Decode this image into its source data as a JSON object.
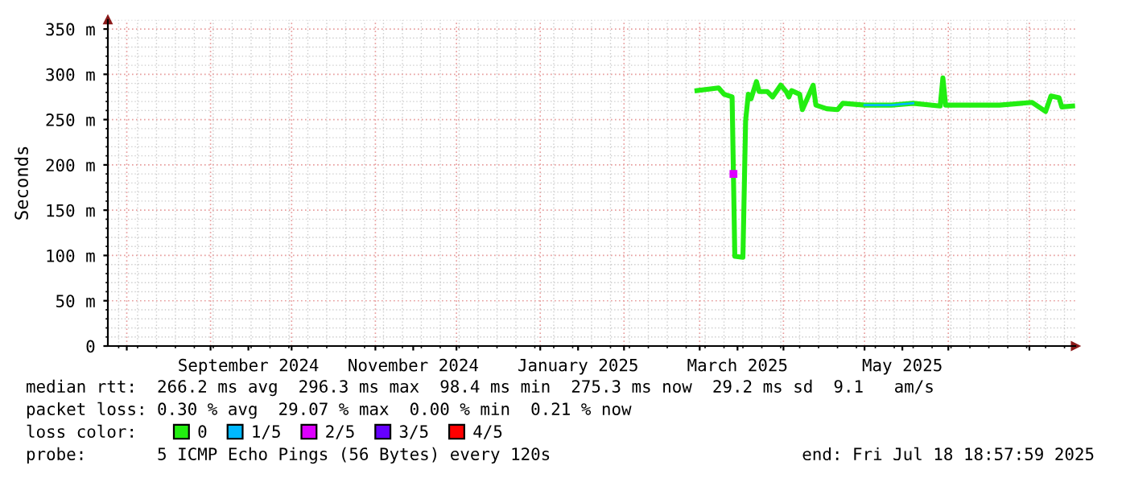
{
  "chart_data": {
    "type": "line",
    "ylabel": "Seconds",
    "xlim": [
      "2024-07-25",
      "2025-07-18"
    ],
    "ylim": [
      0,
      360
    ],
    "xticks": [
      {
        "value": "2024-08-01",
        "label": null
      },
      {
        "value": "2024-09-01",
        "label": null
      },
      {
        "value": "2024-10-01",
        "label": null
      },
      {
        "value": "2024-11-01",
        "label": null
      },
      {
        "value": "2024-12-01",
        "label": null
      },
      {
        "value": "2025-01-01",
        "label": null
      },
      {
        "value": "2025-02-01",
        "label": null
      },
      {
        "value": "2025-03-01",
        "label": null
      },
      {
        "value": "2025-04-01",
        "label": null
      },
      {
        "value": "2025-05-01",
        "label": null
      },
      {
        "value": "2025-06-01",
        "label": null
      },
      {
        "value": "2025-07-01",
        "label": null
      },
      {
        "value": "2024-09-15",
        "label": "September 2024"
      },
      {
        "value": "2024-11-15",
        "label": "November 2024"
      },
      {
        "value": "2025-01-15",
        "label": "January 2025"
      },
      {
        "value": "2025-03-15",
        "label": "March 2025"
      },
      {
        "value": "2025-05-15",
        "label": "May 2025"
      }
    ],
    "yticks": [
      0,
      {
        "value": 50,
        "label": "50 m"
      },
      {
        "value": 100,
        "label": "100 m"
      },
      {
        "value": 150,
        "label": "150 m"
      },
      {
        "value": 200,
        "label": "200 m"
      },
      {
        "value": 250,
        "label": "250 m"
      },
      {
        "value": 300,
        "label": "300 m"
      },
      {
        "value": 350,
        "label": "350 m"
      }
    ],
    "grid": true,
    "legend": "bottom",
    "legend_title": "loss color:",
    "series": [
      {
        "name": "0",
        "color": "#22ee11",
        "x": [
          "2025-02-28",
          "2025-03-08",
          "2025-03-10",
          "2025-03-13",
          "2025-03-14",
          "2025-03-17",
          "2025-03-18",
          "2025-03-19",
          "2025-03-20",
          "2025-03-22",
          "2025-03-23",
          "2025-03-26",
          "2025-03-28",
          "2025-03-31",
          "2025-04-02",
          "2025-04-03",
          "2025-04-04",
          "2025-04-07",
          "2025-04-08",
          "2025-04-12",
          "2025-04-13",
          "2025-04-17",
          "2025-04-21",
          "2025-04-23",
          "2025-05-01",
          "2025-05-11",
          "2025-05-19",
          "2025-05-29",
          "2025-05-30",
          "2025-05-31",
          "2025-06-12",
          "2025-06-20",
          "2025-07-02",
          "2025-07-07",
          "2025-07-09",
          "2025-07-12",
          "2025-07-13",
          "2025-07-17"
        ],
        "values": [
          282,
          285,
          278,
          275,
          99,
          98,
          249,
          278,
          273,
          292,
          281,
          281,
          275,
          288,
          281,
          275,
          282,
          278,
          261,
          288,
          266,
          262,
          261,
          268,
          266,
          266,
          268,
          265,
          296,
          266,
          266,
          266,
          269,
          259,
          276,
          274,
          264,
          265
        ]
      },
      {
        "name": "1/5",
        "color": "#00b8ff",
        "x": [
          "2025-05-01",
          "2025-05-11",
          "2025-05-19"
        ],
        "values": [
          266,
          266,
          268
        ]
      },
      {
        "name": "2/5",
        "color": "#dd00ff",
        "x": [
          "2025-03-13T12:00"
        ],
        "values": [
          190
        ],
        "marker": "square"
      },
      {
        "name": "3/5",
        "color": "#6600ff"
      },
      {
        "name": "4/5",
        "color": "#ff0000"
      }
    ],
    "annotations": [
      "median rtt:  266.2 ms avg  296.3 ms max  98.4 ms min  275.3 ms now  29.2 ms sd  9.1   am/s",
      "packet loss: 0.30 % avg  29.07 % max  0.00 % min  0.21 % now",
      "probe:       5 ICMP Echo Pings (56 Bytes) every 120s",
      "end: Fri Jul 18 18:57:59 2025"
    ]
  }
}
